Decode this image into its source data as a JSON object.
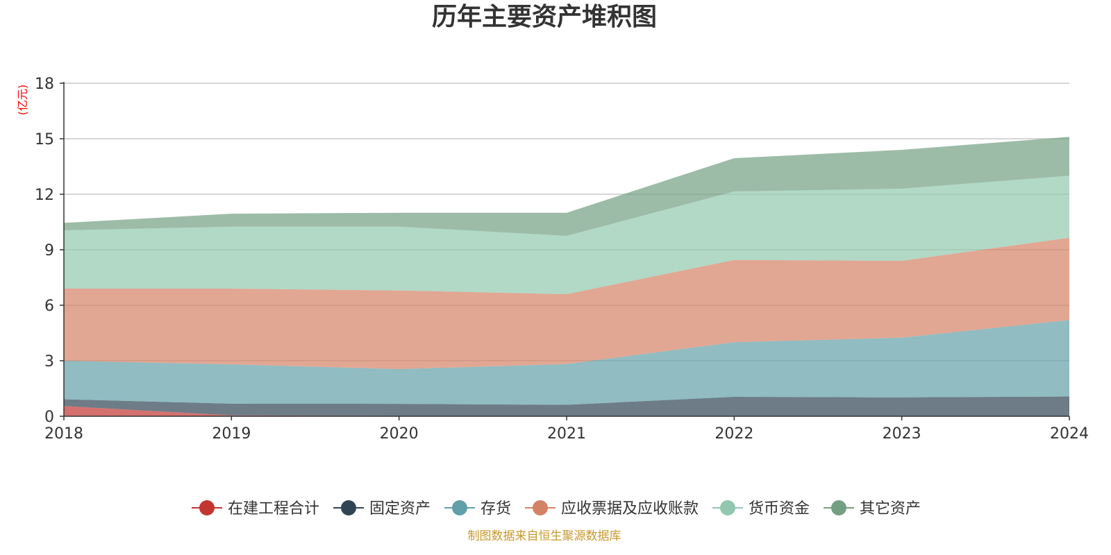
{
  "chart_data": {
    "type": "area",
    "stacked": true,
    "title": "历年主要资产堆积图",
    "unit": "(亿元)",
    "source": "制图数据来自恒生聚源数据库",
    "x": [
      "2018",
      "2019",
      "2020",
      "2021",
      "2022",
      "2023",
      "2024"
    ],
    "ylim": [
      0,
      18
    ],
    "yticks": [
      0,
      3,
      6,
      9,
      12,
      15,
      18
    ],
    "grid": true,
    "legend_position": "bottom",
    "series": [
      {
        "name": "在建工程合计",
        "color": "#c23531",
        "values": [
          0.55,
          0.05,
          0.02,
          0.02,
          0.02,
          0.02,
          0.02
        ]
      },
      {
        "name": "固定资产",
        "color": "#2f4554",
        "values": [
          0.37,
          0.63,
          0.65,
          0.6,
          1.03,
          1.0,
          1.05
        ]
      },
      {
        "name": "存货",
        "color": "#61a0a8",
        "values": [
          2.08,
          2.12,
          1.88,
          2.2,
          2.95,
          3.23,
          4.13
        ]
      },
      {
        "name": "应收票据及应收账款",
        "color": "#d48265",
        "values": [
          3.9,
          4.1,
          4.25,
          3.78,
          4.45,
          4.15,
          4.45
        ]
      },
      {
        "name": "货币资金",
        "color": "#91c7ae",
        "values": [
          3.15,
          3.35,
          3.45,
          3.15,
          3.7,
          3.9,
          3.35
        ]
      },
      {
        "name": "其它资产",
        "color": "#749f83",
        "values": [
          0.4,
          0.7,
          0.75,
          1.25,
          1.8,
          2.1,
          2.1
        ]
      }
    ]
  }
}
